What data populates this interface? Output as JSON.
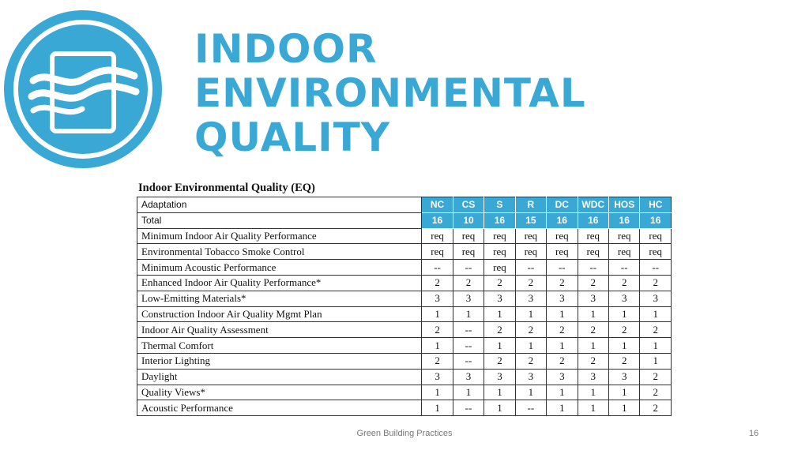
{
  "slide": {
    "title_lines": [
      "INDOOR",
      "ENVIRONMENTAL",
      "QUALITY"
    ],
    "logo_icon": "air-quality-window-icon",
    "accent_color": "#3aa8d4"
  },
  "table": {
    "caption": "Indoor Environmental Quality (EQ)",
    "header_label": "Adaptation",
    "columns": [
      "NC",
      "CS",
      "S",
      "R",
      "DC",
      "WDC",
      "HOS",
      "HC"
    ],
    "total_label": "Total",
    "totals": [
      "16",
      "10",
      "16",
      "15",
      "16",
      "16",
      "16",
      "16"
    ],
    "rows": [
      {
        "name": "Minimum Indoor Air Quality Performance",
        "values": [
          "req",
          "req",
          "req",
          "req",
          "req",
          "req",
          "req",
          "req"
        ]
      },
      {
        "name": "Environmental Tobacco Smoke Control",
        "values": [
          "req",
          "req",
          "req",
          "req",
          "req",
          "req",
          "req",
          "req"
        ]
      },
      {
        "name": "Minimum Acoustic Performance",
        "values": [
          "--",
          "--",
          "req",
          "--",
          "--",
          "--",
          "--",
          "--"
        ]
      },
      {
        "name": "Enhanced Indoor Air Quality Performance*",
        "values": [
          "2",
          "2",
          "2",
          "2",
          "2",
          "2",
          "2",
          "2"
        ]
      },
      {
        "name": "Low-Emitting Materials*",
        "values": [
          "3",
          "3",
          "3",
          "3",
          "3",
          "3",
          "3",
          "3"
        ]
      },
      {
        "name": "Construction Indoor Air Quality Mgmt Plan",
        "values": [
          "1",
          "1",
          "1",
          "1",
          "1",
          "1",
          "1",
          "1"
        ]
      },
      {
        "name": "Indoor Air Quality Assessment",
        "values": [
          "2",
          "--",
          "2",
          "2",
          "2",
          "2",
          "2",
          "2"
        ]
      },
      {
        "name": "Thermal Comfort",
        "values": [
          "1",
          "--",
          "1",
          "1",
          "1",
          "1",
          "1",
          "1"
        ]
      },
      {
        "name": "Interior Lighting",
        "values": [
          "2",
          "--",
          "2",
          "2",
          "2",
          "2",
          "2",
          "1"
        ]
      },
      {
        "name": "Daylight",
        "values": [
          "3",
          "3",
          "3",
          "3",
          "3",
          "3",
          "3",
          "2"
        ]
      },
      {
        "name": "Quality Views*",
        "values": [
          "1",
          "1",
          "1",
          "1",
          "1",
          "1",
          "1",
          "2"
        ]
      },
      {
        "name": "Acoustic Performance",
        "values": [
          "1",
          "--",
          "1",
          "--",
          "1",
          "1",
          "1",
          "2"
        ]
      }
    ]
  },
  "footer": {
    "text": "Green Building Practices",
    "page_number": "16"
  }
}
